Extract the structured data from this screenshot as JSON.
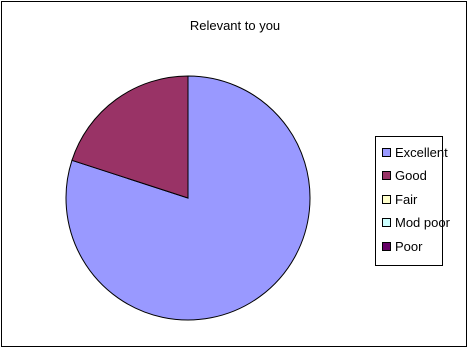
{
  "chart_data": {
    "type": "pie",
    "title": "Relevant to you",
    "categories": [
      "Excellent",
      "Good",
      "Fair",
      "Mod poor",
      "Poor"
    ],
    "values": [
      80,
      20,
      0,
      0,
      0
    ],
    "colors": [
      "#9999FF",
      "#993366",
      "#FFFFCC",
      "#CCFFFF",
      "#660066"
    ],
    "start_angle_deg": 0,
    "direction": "clockwise",
    "legend_position": "right"
  }
}
